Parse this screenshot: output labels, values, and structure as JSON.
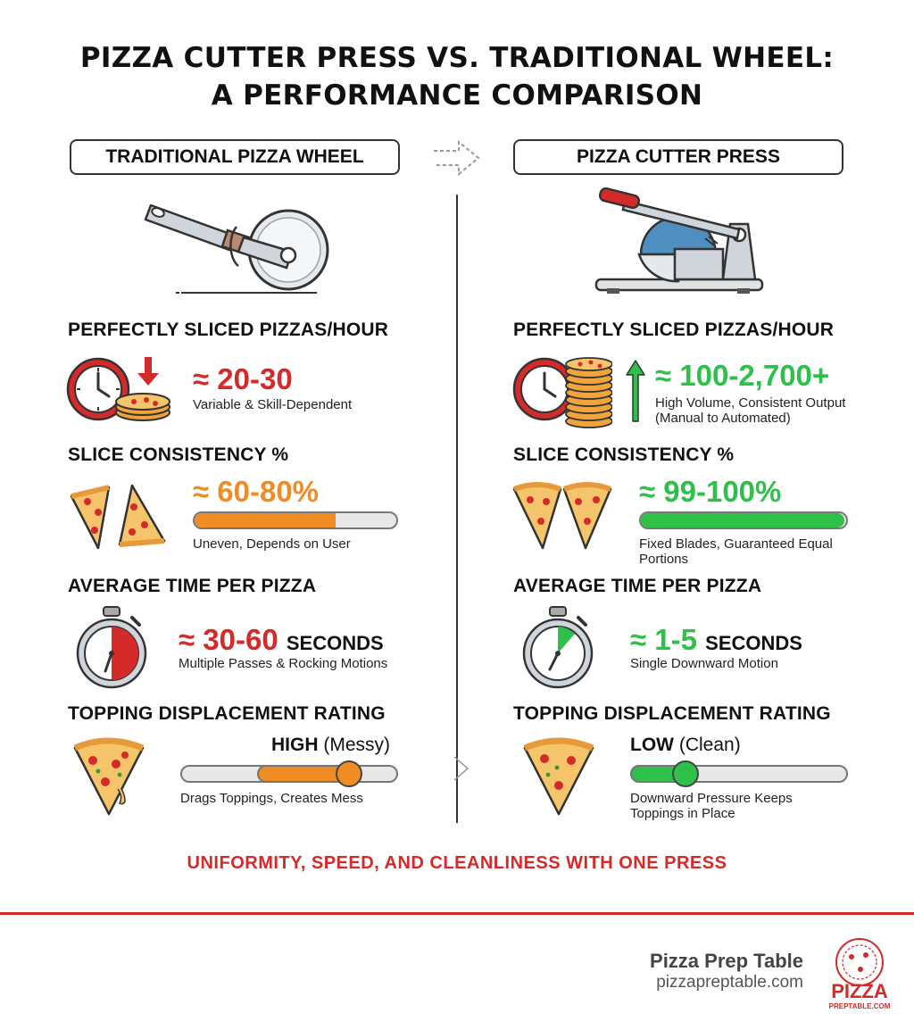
{
  "title_line1": "PIZZA CUTTER PRESS VS. TRADITIONAL WHEEL:",
  "title_line2": "A PERFORMANCE COMPARISON",
  "left": {
    "header": "TRADITIONAL PIZZA WHEEL",
    "pizzas_per_hour": {
      "label": "PERFECTLY SLICED PIZZAS/HOUR",
      "value": "≈ 20-30",
      "note": "Variable & Skill-Dependent"
    },
    "consistency": {
      "label": "SLICE CONSISTENCY %",
      "value": "≈ 60-80%",
      "note": "Uneven, Depends on User",
      "bar_fill_percent": 70,
      "bar_color": "#ef8c24"
    },
    "time": {
      "label": "AVERAGE TIME PER PIZZA",
      "value": "≈ 30-60",
      "unit": "SECONDS",
      "note": "Multiple Passes & Rocking Motions"
    },
    "displacement": {
      "label": "TOPPING DISPLACEMENT RATING",
      "level": "HIGH",
      "level_note": "(Messy)",
      "note": "Drags Toppings, Creates Mess",
      "rating_percent": 78,
      "color": "#ef8c24"
    }
  },
  "right": {
    "header": "PIZZA CUTTER PRESS",
    "pizzas_per_hour": {
      "label": "PERFECTLY SLICED PIZZAS/HOUR",
      "value": "≈ 100-2,700+",
      "note_line1": "High Volume, Consistent Output",
      "note_line2": "(Manual to Automated)"
    },
    "consistency": {
      "label": "SLICE CONSISTENCY %",
      "value": "≈ 99-100%",
      "note_line1": "Fixed Blades, Guaranteed Equal",
      "note_line2": "Portions",
      "bar_fill_percent": 99,
      "bar_color": "#2fc04a"
    },
    "time": {
      "label": "AVERAGE TIME PER PIZZA",
      "value": "≈ 1-5",
      "unit": "SECONDS",
      "note": "Single Downward Motion"
    },
    "displacement": {
      "label": "TOPPING DISPLACEMENT RATING",
      "level": "LOW",
      "level_note": "(Clean)",
      "note_line1": "Downward Pressure Keeps",
      "note_line2": "Toppings in Place",
      "rating_percent": 25,
      "color": "#2fc04a"
    }
  },
  "tagline": "UNIFORMITY, SPEED, AND CLEANLINESS WITH ONE PRESS",
  "footer": {
    "brand": "Pizza Prep Table",
    "url": "pizzapreptable.com",
    "logo_word": "PIZZA",
    "logo_sub": "PREPTABLE.COM"
  },
  "colors": {
    "red": "#d42a2a",
    "orange": "#ef8c24",
    "green": "#2fc04a"
  },
  "icons": [
    "pizza-wheel-icon",
    "pizza-press-icon",
    "clock-icon",
    "down-arrow-icon",
    "up-arrow-icon",
    "pizza-stack-icon",
    "pizza-slice-icon",
    "stopwatch-icon"
  ]
}
